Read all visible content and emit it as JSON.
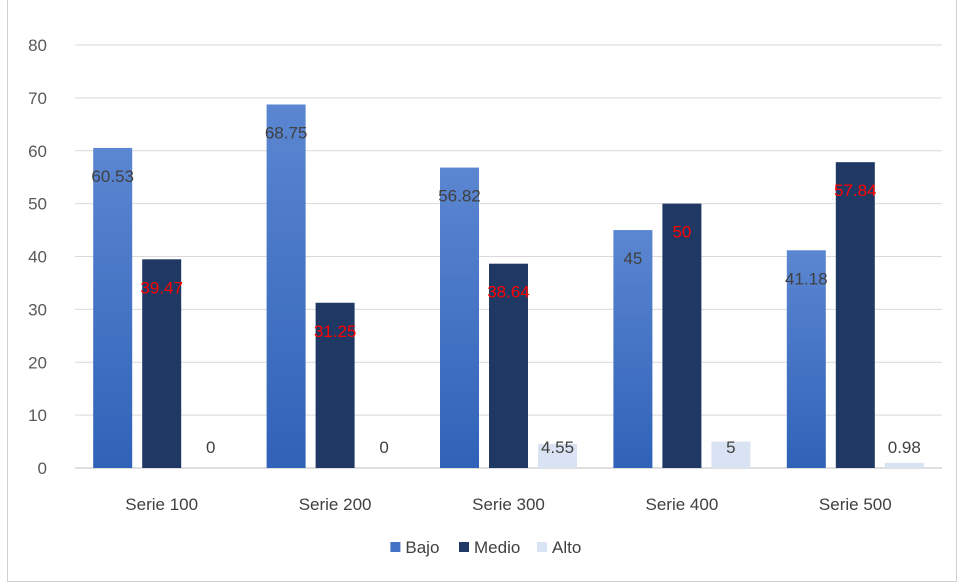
{
  "chart_data": {
    "type": "bar",
    "title": "",
    "xlabel": "",
    "ylabel": "",
    "ylim": [
      0,
      80
    ],
    "yticks": [
      0,
      10,
      20,
      30,
      40,
      50,
      60,
      70,
      80
    ],
    "grid": true,
    "legend_position": "bottom",
    "categories": [
      "Serie 100",
      "Serie 200",
      "Serie 300",
      "Serie 400",
      "Serie 500"
    ],
    "series": [
      {
        "name": "Bajo",
        "color": "#4472c4",
        "label_color": "#404040",
        "values": [
          60.53,
          68.75,
          56.82,
          45,
          41.18
        ],
        "labels": [
          "60.53",
          "68.75",
          "56.82",
          "45",
          "41.18"
        ]
      },
      {
        "name": "Medio",
        "color": "#203864",
        "label_color": "#ff0000",
        "values": [
          39.47,
          31.25,
          38.64,
          50,
          57.84
        ],
        "labels": [
          "39.47",
          "31.25",
          "38.64",
          "50",
          "57.84"
        ]
      },
      {
        "name": "Alto",
        "color": "#dae3f3",
        "label_color": "#404040",
        "values": [
          0,
          0,
          4.55,
          5,
          0.98
        ],
        "labels": [
          "0",
          "0",
          "4.55",
          "5",
          "0.98"
        ]
      }
    ]
  }
}
